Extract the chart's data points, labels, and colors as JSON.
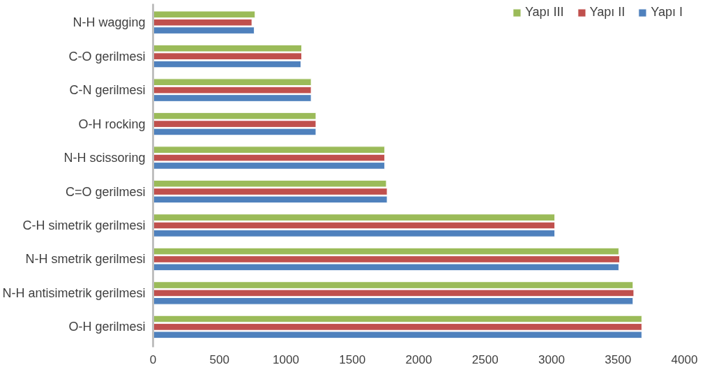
{
  "chart_data": {
    "type": "bar",
    "orientation": "horizontal",
    "categories": [
      "N-H wagging",
      "C-O gerilmesi",
      "C-N gerilmesi",
      "O-H rocking",
      "N-H scissoring",
      "C=O gerilmesi",
      "C-H simetrik gerilmesi",
      "N-H smetrik gerilmesi",
      "N-H antisimetrik gerilmesi",
      "O-H gerilmesi"
    ],
    "series": [
      {
        "name": "Yapı III",
        "color": "#9bbb59",
        "values": [
          768,
          1119,
          1190,
          1226,
          1744,
          1756,
          3024,
          3506,
          3613,
          3679
        ]
      },
      {
        "name": "Yapı II",
        "color": "#c0504d",
        "values": [
          744,
          1119,
          1190,
          1226,
          1744,
          1762,
          3024,
          3512,
          3619,
          3679
        ]
      },
      {
        "name": "Yapı I",
        "color": "#4f81bd",
        "values": [
          762,
          1113,
          1190,
          1226,
          1744,
          1762,
          3024,
          3506,
          3613,
          3679
        ]
      }
    ],
    "xlim": [
      0,
      4000
    ],
    "xticks": [
      0,
      500,
      1000,
      1500,
      2000,
      2500,
      3000,
      3500,
      4000
    ],
    "grid": false,
    "legend": "top right"
  }
}
